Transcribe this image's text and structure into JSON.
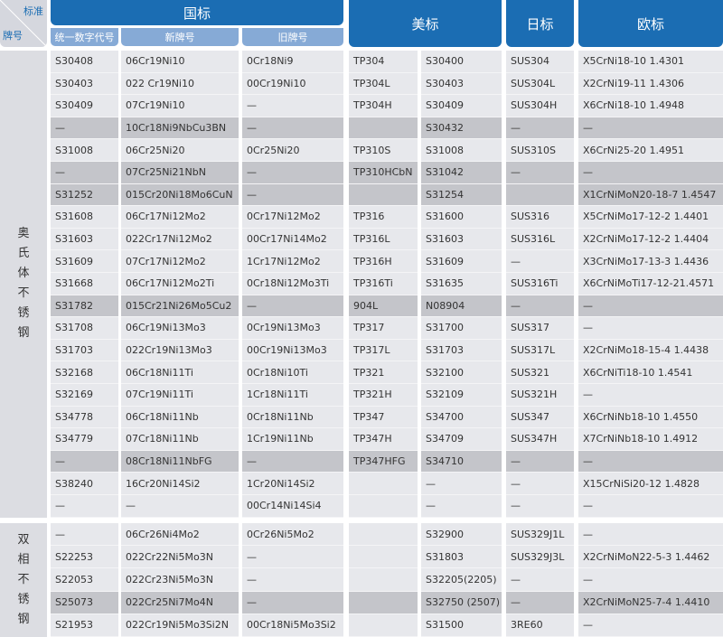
{
  "header": {
    "corner_top": "标准",
    "corner_bottom": "牌号",
    "groups": [
      "国标",
      "美标",
      "日标",
      "欧标"
    ],
    "subheaders": [
      "统一数字代号",
      "新牌号",
      "旧牌号"
    ]
  },
  "sections": [
    {
      "label": "奥氏体不锈钢",
      "rows": [
        {
          "highlight": false,
          "cells": [
            "S30408",
            "06Cr19Ni10",
            "0Cr18Ni9",
            "TP304",
            "S30400",
            "SUS304",
            "X5CrNi18-10 1.4301"
          ]
        },
        {
          "highlight": false,
          "cells": [
            "S30403",
            "022 Cr19Ni10",
            "00Cr19Ni10",
            "TP304L",
            "S30403",
            "SUS304L",
            "X2CrNi19-11 1.4306"
          ]
        },
        {
          "highlight": false,
          "cells": [
            "S30409",
            "07Cr19Ni10",
            "—",
            "TP304H",
            "S30409",
            "SUS304H",
            "X6CrNi18-10 1.4948"
          ]
        },
        {
          "highlight": true,
          "cells": [
            "—",
            "10Cr18Ni9NbCu3BN",
            "—",
            null,
            "S30432",
            "—",
            "—"
          ]
        },
        {
          "highlight": false,
          "cells": [
            "S31008",
            "06Cr25Ni20",
            "0Cr25Ni20",
            "TP310S",
            "S31008",
            "SUS310S",
            "X6CrNi25-20 1.4951"
          ]
        },
        {
          "highlight": true,
          "cells": [
            "—",
            "07Cr25Ni21NbN",
            "—",
            "TP310HCbN",
            "S31042",
            "—",
            "—"
          ]
        },
        {
          "highlight": true,
          "cells": [
            "S31252",
            "015Cr20Ni18Mo6CuN",
            "—",
            null,
            "S31254",
            null,
            "X1CrNiMoN20-18-7 1.4547"
          ]
        },
        {
          "highlight": false,
          "cells": [
            "S31608",
            "06Cr17Ni12Mo2",
            "0Cr17Ni12Mo2",
            "TP316",
            "S31600",
            "SUS316",
            "X5CrNiMo17-12-2 1.4401"
          ]
        },
        {
          "highlight": false,
          "cells": [
            "S31603",
            "022Cr17Ni12Mo2",
            "00Cr17Ni14Mo2",
            "TP316L",
            "S31603",
            "SUS316L",
            "X2CrNiMo17-12-2 1.4404"
          ]
        },
        {
          "highlight": false,
          "cells": [
            "S31609",
            "07Cr17Ni12Mo2",
            "1Cr17Ni12Mo2",
            "TP316H",
            "S31609",
            "—",
            "X3CrNiMo17-13-3 1.4436"
          ]
        },
        {
          "highlight": false,
          "cells": [
            "S31668",
            "06Cr17Ni12Mo2Ti",
            "0Cr18Ni12Mo3Ti",
            "TP316Ti",
            "S31635",
            "SUS316Ti",
            "X6CrNiMoTi17-12-21.4571"
          ]
        },
        {
          "highlight": true,
          "cells": [
            "S31782",
            "015Cr21Ni26Mo5Cu2",
            "—",
            "904L",
            "N08904",
            "—",
            "—"
          ]
        },
        {
          "highlight": false,
          "cells": [
            "S31708",
            "06Cr19Ni13Mo3",
            "0Cr19Ni13Mo3",
            "TP317",
            "S31700",
            "SUS317",
            "—"
          ]
        },
        {
          "highlight": false,
          "cells": [
            "S31703",
            "022Cr19Ni13Mo3",
            "00Cr19Ni13Mo3",
            "TP317L",
            "S31703",
            "SUS317L",
            "X2CrNiMo18-15-4 1.4438"
          ]
        },
        {
          "highlight": false,
          "cells": [
            "S32168",
            "06Cr18Ni11Ti",
            "0Cr18Ni10Ti",
            "TP321",
            "S32100",
            "SUS321",
            "X6CrNiTi18-10 1.4541"
          ]
        },
        {
          "highlight": false,
          "cells": [
            "S32169",
            "07Cr19Ni11Ti",
            "1Cr18Ni11Ti",
            "TP321H",
            "S32109",
            "SUS321H",
            "—"
          ]
        },
        {
          "highlight": false,
          "cells": [
            "S34778",
            "06Cr18Ni11Nb",
            "0Cr18Ni11Nb",
            "TP347",
            "S34700",
            "SUS347",
            "X6CrNiNb18-10 1.4550"
          ]
        },
        {
          "highlight": false,
          "cells": [
            "S34779",
            "07Cr18Ni11Nb",
            "1Cr19Ni11Nb",
            "TP347H",
            "S34709",
            "SUS347H",
            "X7CrNiNb18-10 1.4912"
          ]
        },
        {
          "highlight": true,
          "cells": [
            "—",
            "08Cr18Ni11NbFG",
            "—",
            "TP347HFG",
            "S34710",
            "—",
            "—"
          ]
        },
        {
          "highlight": false,
          "cells": [
            "S38240",
            "16Cr20Ni14Si2",
            "1Cr20Ni14Si2",
            null,
            "—",
            "—",
            "X15CrNiSi20-12 1.4828"
          ]
        },
        {
          "highlight": false,
          "cells": [
            "—",
            "—",
            "00Cr14Ni14Si4",
            null,
            "—",
            "—",
            "—"
          ]
        }
      ]
    },
    {
      "label": "双相不锈钢",
      "rows": [
        {
          "highlight": false,
          "cells": [
            "—",
            "06Cr26Ni4Mo2",
            "0Cr26Ni5Mo2",
            null,
            "S32900",
            "SUS329J1L",
            "—"
          ]
        },
        {
          "highlight": false,
          "cells": [
            "S22253",
            "022Cr22Ni5Mo3N",
            "—",
            null,
            "S31803",
            "SUS329J3L",
            "X2CrNiMoN22-5-3 1.4462"
          ]
        },
        {
          "highlight": false,
          "cells": [
            "S22053",
            "022Cr23Ni5Mo3N",
            "—",
            null,
            "S32205(2205)",
            "—",
            "—"
          ]
        },
        {
          "highlight": true,
          "cells": [
            "S25073",
            "022Cr25Ni7Mo4N",
            "—",
            null,
            "S32750 (2507)",
            "—",
            "X2CrNiMoN25-7-4 1.4410"
          ]
        },
        {
          "highlight": false,
          "cells": [
            "S21953",
            "022Cr19Ni5Mo3Si2N",
            "00Cr18Ni5Mo3Si2",
            null,
            "S31500",
            "3RE60",
            "—"
          ]
        }
      ]
    }
  ]
}
